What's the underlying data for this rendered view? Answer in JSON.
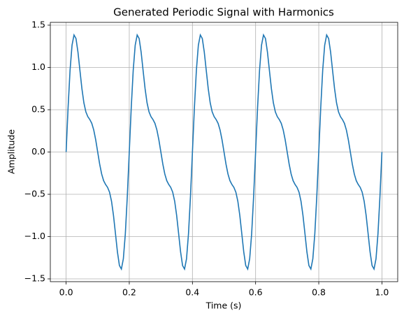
{
  "chart_data": {
    "type": "line",
    "title": "Generated Periodic Signal with Harmonics",
    "xlabel": "Time (s)",
    "ylabel": "Amplitude",
    "color": "#1f77b4",
    "grid": true,
    "xlim": [
      -0.05,
      1.05
    ],
    "ylim": [
      -1.533,
      1.533
    ],
    "xticks": [
      {
        "value": 0,
        "label": "0.0"
      },
      {
        "value": 0.2,
        "label": "0.2"
      },
      {
        "value": 0.4,
        "label": "0.4"
      },
      {
        "value": 0.6,
        "label": "0.6"
      },
      {
        "value": 0.8,
        "label": "0.8"
      },
      {
        "value": 1,
        "label": "1.0"
      }
    ],
    "yticks": [
      {
        "value": -1.5,
        "label": "−1.5"
      },
      {
        "value": -1,
        "label": "−1.0"
      },
      {
        "value": -0.5,
        "label": "−0.5"
      },
      {
        "value": 0,
        "label": "0.0"
      },
      0.5,
      {
        "value": 1,
        "label": "1.0"
      },
      1.5
    ],
    "x": [
      0,
      0.00625,
      0.0125,
      0.01875,
      0.025,
      0.03125,
      0.0375,
      0.04375,
      0.05,
      0.05625,
      0.0625,
      0.06875,
      0.075,
      0.08125,
      0.0875,
      0.09375,
      0.1,
      0.10625,
      0.1125,
      0.11875,
      0.125,
      0.13125,
      0.1375,
      0.14375,
      0.15,
      0.15625,
      0.1625,
      0.16875,
      0.175,
      0.18125,
      0.1875,
      0.19375,
      0.2,
      0.20625,
      0.2125,
      0.21875,
      0.225,
      0.23125,
      0.2375,
      0.24375,
      0.25,
      0.25625,
      0.2625,
      0.26875,
      0.275,
      0.28125,
      0.2875,
      0.29375,
      0.3,
      0.30625,
      0.3125,
      0.31875,
      0.325,
      0.33125,
      0.3375,
      0.34375,
      0.35,
      0.35625,
      0.3625,
      0.36875,
      0.375,
      0.38125,
      0.3875,
      0.39375,
      0.4,
      0.40625,
      0.4125,
      0.41875,
      0.425,
      0.43125,
      0.4375,
      0.44375,
      0.45,
      0.45625,
      0.4625,
      0.46875,
      0.475,
      0.48125,
      0.4875,
      0.49375,
      0.5,
      0.50625,
      0.5125,
      0.51875,
      0.525,
      0.53125,
      0.5375,
      0.54375,
      0.55,
      0.55625,
      0.5625,
      0.56875,
      0.575,
      0.58125,
      0.5875,
      0.59375,
      0.6,
      0.60625,
      0.6125,
      0.61875,
      0.625,
      0.63125,
      0.6375,
      0.64375,
      0.65,
      0.65625,
      0.6625,
      0.66875,
      0.675,
      0.68125,
      0.6875,
      0.69375,
      0.7,
      0.70625,
      0.7125,
      0.71875,
      0.725,
      0.73125,
      0.7375,
      0.74375,
      0.75,
      0.75625,
      0.7625,
      0.76875,
      0.775,
      0.78125,
      0.7875,
      0.79375,
      0.8,
      0.80625,
      0.8125,
      0.81875,
      0.825,
      0.83125,
      0.8375,
      0.84375,
      0.85,
      0.85625,
      0.8625,
      0.86875,
      0.875,
      0.88125,
      0.8875,
      0.89375,
      0.9,
      0.90625,
      0.9125,
      0.91875,
      0.925,
      0.93125,
      0.9375,
      0.94375,
      0.95,
      0.95625,
      0.9625,
      0.96875,
      0.975,
      0.98125,
      0.9875,
      0.99375,
      1
    ],
    "values": [
      0,
      0.525,
      0.967,
      1.263,
      1.384,
      1.342,
      1.182,
      0.964,
      0.75,
      0.582,
      0.475,
      0.418,
      0.384,
      0.339,
      0.26,
      0.143,
      0,
      -0.143,
      -0.26,
      -0.339,
      -0.384,
      -0.418,
      -0.475,
      -0.582,
      -0.75,
      -0.964,
      -1.182,
      -1.342,
      -1.384,
      -1.263,
      -0.967,
      -0.525,
      0,
      0.525,
      0.967,
      1.263,
      1.384,
      1.342,
      1.182,
      0.964,
      0.75,
      0.582,
      0.475,
      0.418,
      0.384,
      0.339,
      0.26,
      0.143,
      0,
      -0.143,
      -0.26,
      -0.339,
      -0.384,
      -0.418,
      -0.475,
      -0.582,
      -0.75,
      -0.964,
      -1.182,
      -1.342,
      -1.384,
      -1.263,
      -0.967,
      -0.525,
      0,
      0.525,
      0.967,
      1.263,
      1.384,
      1.342,
      1.182,
      0.964,
      0.75,
      0.582,
      0.475,
      0.418,
      0.384,
      0.339,
      0.26,
      0.143,
      0,
      -0.143,
      -0.26,
      -0.339,
      -0.384,
      -0.418,
      -0.475,
      -0.582,
      -0.75,
      -0.964,
      -1.182,
      -1.342,
      -1.384,
      -1.263,
      -0.967,
      -0.525,
      0,
      0.525,
      0.967,
      1.263,
      1.384,
      1.342,
      1.182,
      0.964,
      0.75,
      0.582,
      0.475,
      0.418,
      0.384,
      0.339,
      0.26,
      0.143,
      0,
      -0.143,
      -0.26,
      -0.339,
      -0.384,
      -0.418,
      -0.475,
      -0.582,
      -0.75,
      -0.964,
      -1.182,
      -1.342,
      -1.384,
      -1.263,
      -0.967,
      -0.525,
      0,
      0.525,
      0.967,
      1.263,
      1.384,
      1.342,
      1.182,
      0.964,
      0.75,
      0.582,
      0.475,
      0.418,
      0.384,
      0.339,
      0.26,
      0.143,
      0,
      -0.143,
      -0.26,
      -0.339,
      -0.384,
      -0.418,
      -0.475,
      -0.582,
      -0.75,
      -0.964,
      -1.182,
      -1.342,
      -1.384,
      -1.263,
      -0.967,
      -0.525,
      0
    ]
  }
}
